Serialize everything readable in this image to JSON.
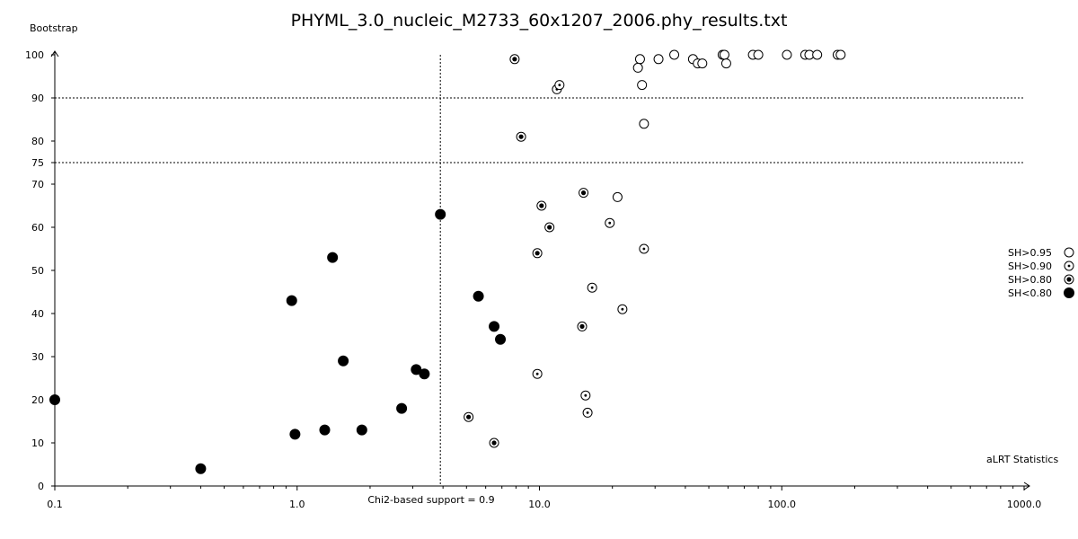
{
  "chart_data": {
    "type": "scatter",
    "title": "PHYML_3.0_nucleic_M2733_60x1207_2006.phy_results.txt",
    "ylabel": "Bootstrap",
    "xlabel": "aLRT Statistics",
    "x_scale": "log",
    "xlim": [
      0.1,
      1000.0
    ],
    "ylim": [
      0,
      100
    ],
    "x_ticks": [
      "0.1",
      "1.0",
      "10.0",
      "100.0",
      "1000.0"
    ],
    "y_ticks": [
      "0",
      "10",
      "20",
      "30",
      "40",
      "50",
      "60",
      "70",
      "75",
      "80",
      "90",
      "100"
    ],
    "grid": false,
    "reference_lines": {
      "vertical": {
        "x": 3.9,
        "label": "Chi2-based support = 0.9"
      },
      "horizontal": [
        90,
        75
      ]
    },
    "legend_position": "right",
    "series": [
      {
        "name": "SH>0.95",
        "marker": "open-circle",
        "points": [
          [
            26,
            99
          ],
          [
            36,
            100
          ],
          [
            31,
            99
          ],
          [
            43,
            99
          ],
          [
            45,
            98
          ],
          [
            47,
            98
          ],
          [
            57,
            100
          ],
          [
            58,
            100
          ],
          [
            59,
            98
          ],
          [
            76,
            100
          ],
          [
            80,
            100
          ],
          [
            105,
            100
          ],
          [
            125,
            100
          ],
          [
            130,
            100
          ],
          [
            140,
            100
          ],
          [
            170,
            100
          ],
          [
            175,
            100
          ],
          [
            25.5,
            97
          ],
          [
            26.5,
            93
          ],
          [
            27,
            84
          ],
          [
            21,
            67
          ]
        ]
      },
      {
        "name": "SH>0.90",
        "marker": "dotted-circle",
        "points": [
          [
            11.8,
            92
          ],
          [
            12.1,
            93
          ],
          [
            19.5,
            61
          ],
          [
            27,
            55
          ],
          [
            16.5,
            46
          ],
          [
            22,
            41
          ],
          [
            9.8,
            26
          ],
          [
            15.5,
            21
          ],
          [
            15.8,
            17
          ]
        ]
      },
      {
        "name": "SH>0.80",
        "marker": "centered-dot-circle",
        "points": [
          [
            7.9,
            99
          ],
          [
            8.4,
            81
          ],
          [
            15.2,
            68
          ],
          [
            10.2,
            65
          ],
          [
            11.0,
            60
          ],
          [
            9.8,
            54
          ],
          [
            15.0,
            37
          ],
          [
            5.1,
            16
          ],
          [
            6.5,
            10
          ]
        ]
      },
      {
        "name": "SH<0.80",
        "marker": "filled-circle",
        "points": [
          [
            0.1,
            20
          ],
          [
            0.4,
            4
          ],
          [
            0.95,
            43
          ],
          [
            0.98,
            12
          ],
          [
            1.3,
            13
          ],
          [
            1.4,
            53
          ],
          [
            1.55,
            29
          ],
          [
            1.85,
            13
          ],
          [
            2.7,
            18
          ],
          [
            3.1,
            27
          ],
          [
            3.35,
            26
          ],
          [
            3.9,
            63
          ],
          [
            5.6,
            44
          ],
          [
            6.5,
            37
          ],
          [
            6.9,
            34
          ]
        ]
      }
    ]
  }
}
